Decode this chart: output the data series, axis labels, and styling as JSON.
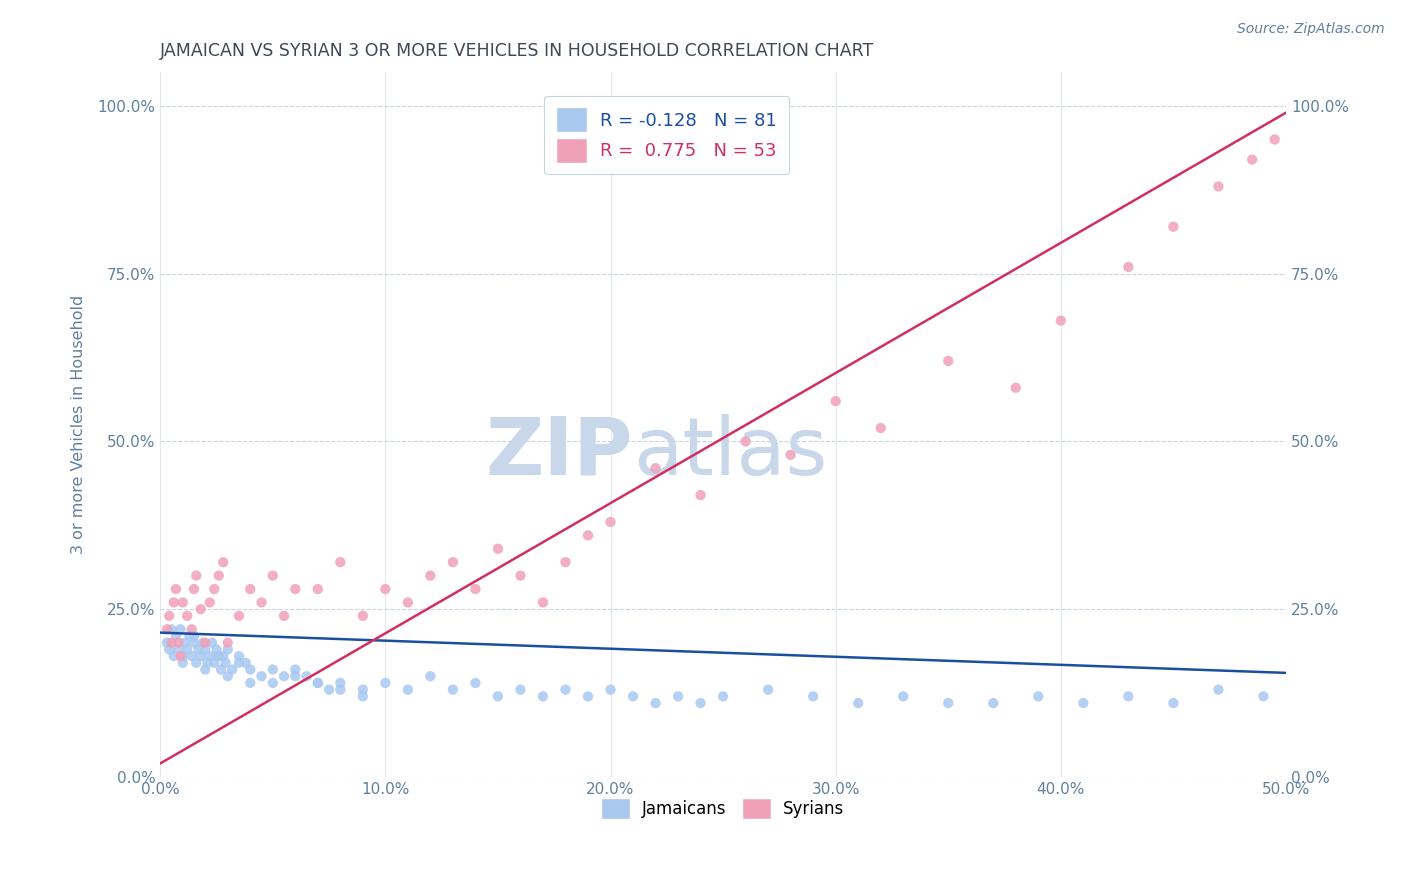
{
  "title": "JAMAICAN VS SYRIAN 3 OR MORE VEHICLES IN HOUSEHOLD CORRELATION CHART",
  "source_text": "Source: ZipAtlas.com",
  "ylabel": "3 or more Vehicles in Household",
  "xlim": [
    0.0,
    50.0
  ],
  "ylim": [
    0.0,
    105.0
  ],
  "xtick_values": [
    0,
    10,
    20,
    30,
    40,
    50
  ],
  "ytick_values": [
    0,
    25,
    50,
    75,
    100
  ],
  "jamaican_color": "#a8c8f0",
  "syrian_color": "#f0a0b8",
  "jamaican_line_color": "#1a4fa0",
  "syrian_line_color": "#d03060",
  "R_jamaican": -0.128,
  "N_jamaican": 81,
  "R_syrian": 0.775,
  "N_syrian": 53,
  "watermark_zip": "ZIP",
  "watermark_atlas": "atlas",
  "watermark_color": "#c8d8ea",
  "background_color": "#ffffff",
  "grid_color": "#c8d4e0",
  "title_color": "#404858",
  "axis_label_color": "#6080a0",
  "tick_label_color": "#6080a0",
  "jamaican_x": [
    0.3,
    0.4,
    0.5,
    0.6,
    0.7,
    0.8,
    0.9,
    1.0,
    1.1,
    1.2,
    1.3,
    1.4,
    1.5,
    1.6,
    1.7,
    1.8,
    1.9,
    2.0,
    2.1,
    2.2,
    2.3,
    2.4,
    2.5,
    2.6,
    2.7,
    2.8,
    2.9,
    3.0,
    3.2,
    3.5,
    3.8,
    4.0,
    4.5,
    5.0,
    5.5,
    6.0,
    6.5,
    7.0,
    7.5,
    8.0,
    9.0,
    10.0,
    11.0,
    12.0,
    13.0,
    14.0,
    15.0,
    16.0,
    17.0,
    18.0,
    19.0,
    20.0,
    21.0,
    22.0,
    23.0,
    24.0,
    25.0,
    27.0,
    29.0,
    31.0,
    33.0,
    35.0,
    37.0,
    39.0,
    41.0,
    43.0,
    45.0,
    47.0,
    49.0,
    1.0,
    1.5,
    2.0,
    2.5,
    3.0,
    3.5,
    4.0,
    5.0,
    6.0,
    7.0,
    8.0,
    9.0
  ],
  "jamaican_y": [
    20,
    19,
    22,
    18,
    21,
    19,
    22,
    18,
    20,
    19,
    21,
    18,
    20,
    17,
    19,
    18,
    20,
    19,
    17,
    18,
    20,
    17,
    19,
    18,
    16,
    18,
    17,
    19,
    16,
    18,
    17,
    16,
    15,
    14,
    15,
    16,
    15,
    14,
    13,
    14,
    13,
    14,
    13,
    15,
    13,
    14,
    12,
    13,
    12,
    13,
    12,
    13,
    12,
    11,
    12,
    11,
    12,
    13,
    12,
    11,
    12,
    11,
    11,
    12,
    11,
    12,
    11,
    13,
    12,
    17,
    21,
    16,
    18,
    15,
    17,
    14,
    16,
    15,
    14,
    13,
    12
  ],
  "syrian_x": [
    0.3,
    0.5,
    0.7,
    0.9,
    1.0,
    1.2,
    1.4,
    1.5,
    1.6,
    1.8,
    2.0,
    2.2,
    2.4,
    2.6,
    2.8,
    3.0,
    3.5,
    4.0,
    4.5,
    5.0,
    5.5,
    6.0,
    7.0,
    8.0,
    9.0,
    10.0,
    11.0,
    12.0,
    13.0,
    14.0,
    15.0,
    16.0,
    17.0,
    18.0,
    19.0,
    20.0,
    22.0,
    24.0,
    26.0,
    28.0,
    30.0,
    32.0,
    35.0,
    38.0,
    40.0,
    43.0,
    45.0,
    47.0,
    48.5,
    49.5,
    0.4,
    0.6,
    0.8
  ],
  "syrian_y": [
    22,
    20,
    28,
    18,
    26,
    24,
    22,
    28,
    30,
    25,
    20,
    26,
    28,
    30,
    32,
    20,
    24,
    28,
    26,
    30,
    24,
    28,
    28,
    32,
    24,
    28,
    26,
    30,
    32,
    28,
    34,
    30,
    26,
    32,
    36,
    38,
    46,
    42,
    50,
    48,
    56,
    52,
    62,
    58,
    68,
    76,
    82,
    88,
    92,
    95,
    24,
    26,
    20
  ],
  "jam_line_x0": 0.0,
  "jam_line_y0": 21.5,
  "jam_line_x1": 50.0,
  "jam_line_y1": 15.5,
  "syr_line_x0": 0.0,
  "syr_line_y0": 2.0,
  "syr_line_x1": 50.0,
  "syr_line_y1": 99.0
}
